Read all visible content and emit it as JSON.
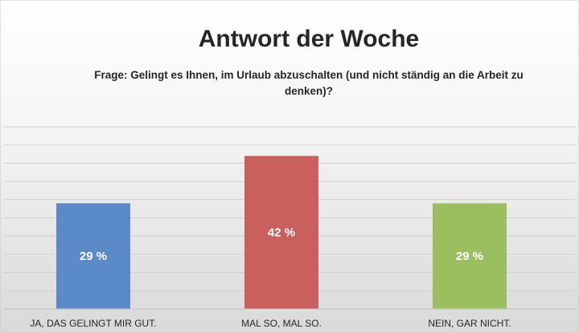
{
  "chart_data": {
    "type": "bar",
    "title": "Antwort der Woche",
    "subtitle_lines": [
      "Frage: Gelingt es Ihnen, im Urlaub abzuschalten (und nicht ständig an die Arbeit zu",
      "denken)?"
    ],
    "categories": [
      "JA, DAS GELINGT MIR GUT.",
      "MAL SO, MAL SO.",
      "NEIN, GAR NICHT."
    ],
    "values": [
      29,
      42,
      29
    ],
    "data_labels": [
      "29 %",
      "42 %",
      "29 %"
    ],
    "bar_colors": [
      "#5b8ac9",
      "#c9605d",
      "#9bbf5e"
    ],
    "ylim": [
      0,
      50
    ],
    "grid": true,
    "legend": "none"
  },
  "colors": {
    "background_top": "#ffffff",
    "background_bottom": "#d9d9d9",
    "gridline": "#d0d0d0",
    "axis": "#bfbfbf",
    "text": "#262626"
  }
}
